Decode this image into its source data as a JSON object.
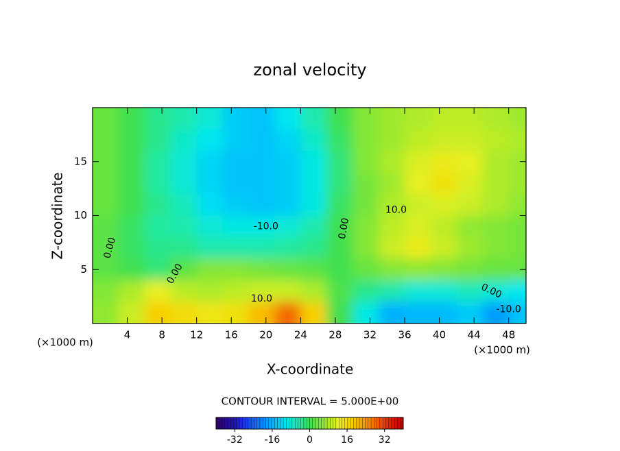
{
  "chart_data": {
    "type": "heatmap",
    "title": "zonal velocity",
    "x_label": "X-coordinate",
    "y_label": "Z-coordinate",
    "x_unit": "(×1000 m)",
    "xlim": [
      0,
      50
    ],
    "xticks": [
      4,
      8,
      12,
      16,
      20,
      24,
      28,
      32,
      36,
      40,
      44,
      48
    ],
    "ylim": [
      0,
      20
    ],
    "yticks": [
      5,
      10,
      15
    ],
    "x": [
      1.5,
      4.5,
      7.5,
      10.5,
      13.5,
      16.5,
      19.5,
      22.5,
      25.5,
      28.5,
      31.5,
      34.5,
      37.5,
      40.5,
      43.5,
      46.5,
      49.5
    ],
    "y": [
      19,
      17,
      15,
      13,
      11,
      9,
      7,
      5,
      3,
      1
    ],
    "z": [
      [
        3,
        0,
        -3,
        -5,
        -8,
        -13,
        -14,
        -10,
        -5,
        0,
        5,
        7,
        8,
        9,
        9,
        8,
        7
      ],
      [
        3,
        0,
        -3,
        -7,
        -10,
        -13,
        -14,
        -12,
        -7,
        -1,
        5,
        7,
        9,
        10,
        10,
        9,
        8
      ],
      [
        3,
        0,
        -4,
        -8,
        -12,
        -14,
        -14,
        -13,
        -9,
        -2,
        5,
        8,
        11,
        13,
        12,
        8,
        7
      ],
      [
        3,
        0,
        -4,
        -8,
        -12,
        -14,
        -14,
        -13,
        -9,
        -2,
        4,
        7,
        12,
        15,
        11,
        8,
        7
      ],
      [
        3,
        0,
        -3,
        -6,
        -11,
        -13,
        -14,
        -13,
        -9,
        -1,
        4,
        8,
        10,
        11,
        10,
        8,
        6
      ],
      [
        2,
        -1,
        -4,
        -5,
        -8,
        -9,
        -9,
        -8,
        -5,
        0,
        5,
        9,
        11,
        9,
        6,
        5,
        4
      ],
      [
        2,
        -1,
        -3,
        -3,
        -5,
        -5,
        -5,
        -4,
        -3,
        0,
        5,
        10,
        13,
        10,
        7,
        5,
        4
      ],
      [
        2,
        0,
        -2,
        2,
        5,
        5,
        4,
        3,
        2,
        0,
        3,
        5,
        6,
        5,
        4,
        3,
        3
      ],
      [
        5,
        8,
        12,
        9,
        8,
        9,
        10,
        10,
        8,
        1,
        -3,
        -5,
        -8,
        -8,
        -6,
        -8,
        -10
      ],
      [
        6,
        10,
        18,
        16,
        14,
        15,
        20,
        28,
        18,
        0,
        -9,
        -16,
        -15,
        -15,
        -13,
        -18,
        -14
      ]
    ],
    "contour_labels": [
      {
        "value": -10,
        "label": "-10.0"
      },
      {
        "value": 10,
        "label": "10.0"
      },
      {
        "value": 0,
        "label": "0.00"
      },
      {
        "value": 0,
        "label": "0.00"
      },
      {
        "value": 0,
        "label": "0.00"
      },
      {
        "value": 0,
        "label": "0.00"
      },
      {
        "value": 10,
        "label": "10.0"
      },
      {
        "value": -10,
        "label": "-10.0"
      }
    ],
    "contour_interval_text": "CONTOUR INTERVAL = 5.000E+00",
    "colorbar": {
      "lim": [
        -40,
        40
      ],
      "ticks": [
        -32,
        -16,
        0,
        16,
        32
      ]
    }
  }
}
